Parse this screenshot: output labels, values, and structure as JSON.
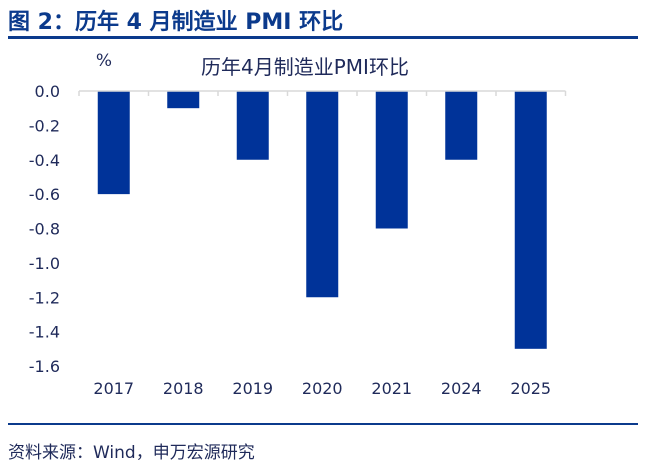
{
  "figure_title": "图 2：历年 4 月制造业 PMI 环比",
  "source": "资料来源：Wind，申万宏源研究",
  "colors": {
    "bar": "#003399",
    "title": "#0b3a8c",
    "axis": "#d9d9d9",
    "text": "#1f2a5a"
  },
  "chart_data": {
    "type": "bar",
    "title": "历年4月制造业PMI环比",
    "ylabel": "%",
    "xlabel": "",
    "categories": [
      "2017",
      "2018",
      "2019",
      "2020",
      "2021",
      "2024",
      "2025"
    ],
    "values": [
      -0.6,
      -0.1,
      -0.4,
      -1.2,
      -0.8,
      -0.4,
      -1.5
    ],
    "ylim": [
      -1.6,
      0
    ],
    "yticks": [
      "0.0",
      "-0.2",
      "-0.4",
      "-0.6",
      "-0.8",
      "-1.0",
      "-1.2",
      "-1.4",
      "-1.6"
    ],
    "grid": false,
    "legend": "none"
  }
}
